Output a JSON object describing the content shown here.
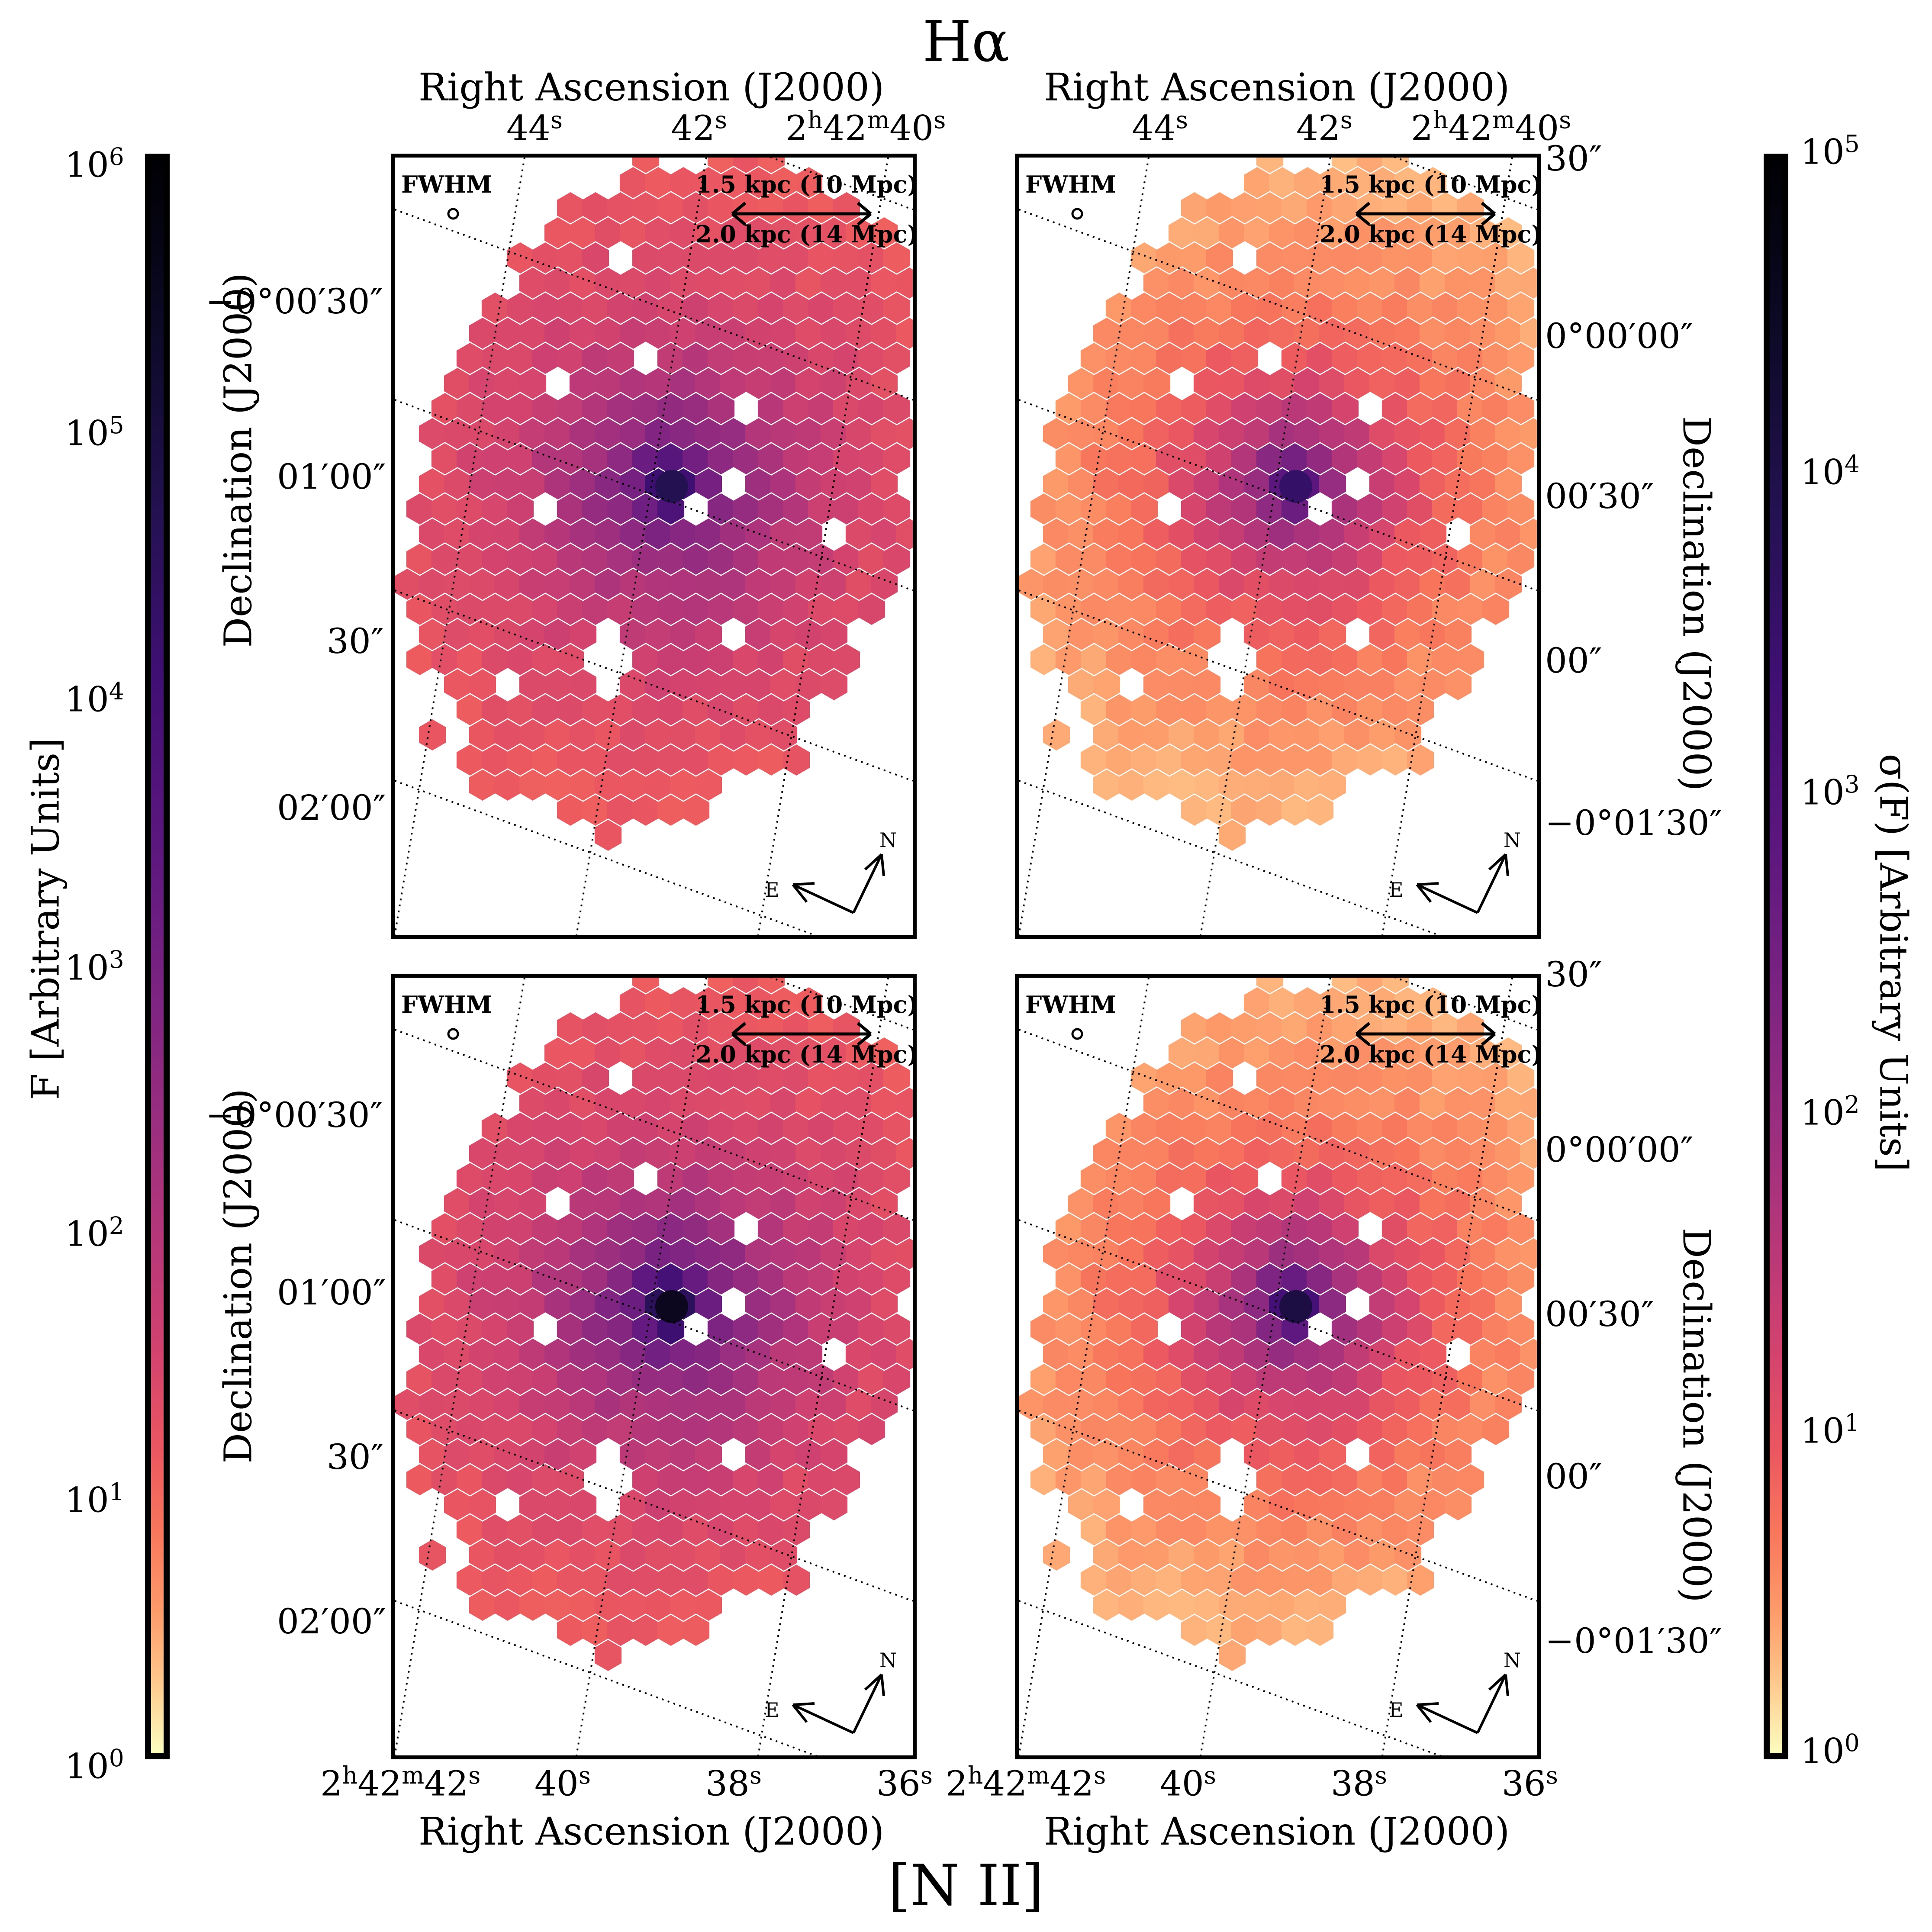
{
  "chart_data": {
    "type": "heatmap",
    "title_top": "Hα",
    "title_bottom": "[N II]",
    "panels": [
      {
        "id": "halpha-flux",
        "row": "Hα",
        "quantity": "F",
        "colormap": "magma_r",
        "scale": "log",
        "peak_log": 5.7,
        "position": "top-left"
      },
      {
        "id": "halpha-sigma",
        "row": "Hα",
        "quantity": "σ(F)",
        "colormap": "magma_r",
        "scale": "log",
        "peak_log": 4.6,
        "position": "top-right"
      },
      {
        "id": "nii-flux",
        "row": "[N II]",
        "quantity": "F",
        "colormap": "magma_r",
        "scale": "log",
        "peak_log": 5.9,
        "position": "bottom-left"
      },
      {
        "id": "nii-sigma",
        "row": "[N II]",
        "quantity": "σ(F)",
        "colormap": "magma_r",
        "scale": "log",
        "peak_log": 4.8,
        "position": "bottom-right"
      }
    ],
    "ra_axis": {
      "label": "Right Ascension (J2000)",
      "top_ticks": [
        "44s",
        "42s",
        "2h42m40s"
      ],
      "bottom_ticks": [
        "2h42m42s",
        "40s",
        "38s",
        "36s"
      ]
    },
    "dec_axis": {
      "label": "Declination (J2000)",
      "left_ticks": [
        "−0°00′30″",
        "01′00″",
        "30″",
        "02′00″"
      ],
      "right_ticks": [
        "30″",
        "0°00′00″",
        "00′30″",
        "00″",
        "−0°01′30″"
      ]
    },
    "colorbar_left": {
      "label": "F [Arbitrary Units]",
      "scale": "log",
      "range": [
        1,
        1000000
      ],
      "ticks": [
        "10^0",
        "10^1",
        "10^2",
        "10^3",
        "10^4",
        "10^5",
        "10^6"
      ]
    },
    "colorbar_right": {
      "label": "σ(F) [Arbitrary Units]",
      "scale": "log",
      "range": [
        1,
        100000
      ],
      "ticks": [
        "10^0",
        "10^1",
        "10^2",
        "10^3",
        "10^4",
        "10^5"
      ]
    },
    "annotations": {
      "fwhm": "FWHM",
      "scale_top": "1.5 kpc (10 Mpc)",
      "scale_bottom": "2.0 kpc (14 Mpc)",
      "compass_n": "N",
      "compass_e": "E"
    },
    "grid": "dotted-rotated"
  },
  "labels": {
    "title_top": "Hα",
    "title_bottom": "[N II]",
    "ra_label": "Right Ascension (J2000)",
    "dec_label": "Declination (J2000)",
    "cbar_left_label": "F [Arbitrary Units]",
    "cbar_right_label": "σ(F) [Arbitrary Units]",
    "fwhm": "FWHM",
    "scale_top": "1.5 kpc (10 Mpc)",
    "scale_bottom": "2.0 kpc (14 Mpc)",
    "north": "N",
    "east": "E"
  },
  "ticks": {
    "ra_top": [
      "44",
      "42",
      "40"
    ],
    "ra_bottom": [
      "42",
      "40",
      "38",
      "36"
    ],
    "dec_left": [
      "−0°00′30″",
      "01′00″",
      "30″",
      "02′00″"
    ],
    "dec_right": [
      "30″",
      "0°00′00″",
      "00′30″",
      "00″",
      "−0°01′30″"
    ],
    "cbar_left_exp": [
      "6",
      "5",
      "4",
      "3",
      "2",
      "1",
      "0"
    ],
    "cbar_right_exp": [
      "5",
      "4",
      "3",
      "2",
      "1",
      "0"
    ]
  }
}
